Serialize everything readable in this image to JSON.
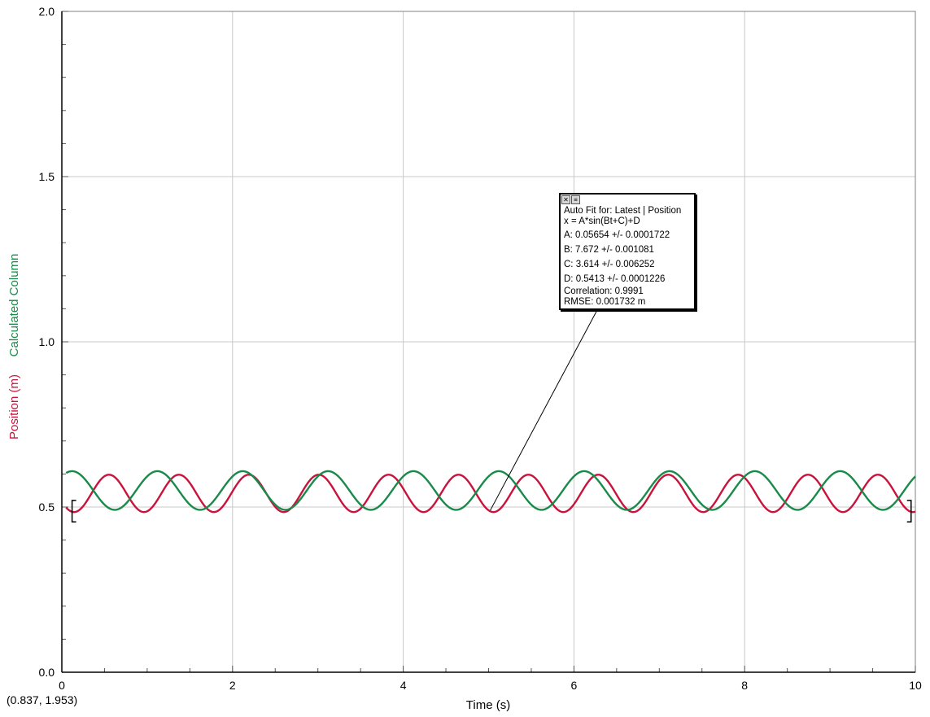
{
  "chart_data": {
    "type": "line",
    "xlabel": "Time (s)",
    "ylabels": [
      "Position (m)",
      "Calculated Column"
    ],
    "xlim": [
      0,
      10
    ],
    "ylim": [
      0.0,
      2.0
    ],
    "x_ticks": [
      "0",
      "2",
      "4",
      "6",
      "8",
      "10"
    ],
    "y_ticks": [
      "0.0",
      "0.5",
      "1.0",
      "1.5",
      "2.0"
    ],
    "grid": true,
    "series": [
      {
        "name": "Position (m)",
        "color": "#c8143c",
        "model": {
          "A": 0.05654,
          "B": 7.672,
          "C": 3.614,
          "D": 0.5413
        },
        "x_range": [
          0.05,
          10
        ]
      },
      {
        "name": "Calculated Column",
        "color": "#1a8a4a",
        "model": {
          "A": 0.0585,
          "B": 6.283,
          "C": 0.82,
          "D": 0.55
        },
        "x_range": [
          0.05,
          10
        ]
      }
    ],
    "fit_box": {
      "title": "Auto Fit for: Latest | Position",
      "equation": "x = A*sin(Bt+C)+D",
      "params": [
        "A: 0.05654 +/- 0.0001722",
        "B: 7.672 +/- 0.001081",
        "C: 3.614 +/- 0.006252",
        "D: 0.5413 +/- 0.0001226"
      ],
      "correlation": "Correlation: 0.9991",
      "rmse": "RMSE: 0.001732 m",
      "pointer_to": {
        "x": 5.02,
        "y": 0.49
      }
    },
    "cursor_readout": "(0.837, 1.953)"
  }
}
